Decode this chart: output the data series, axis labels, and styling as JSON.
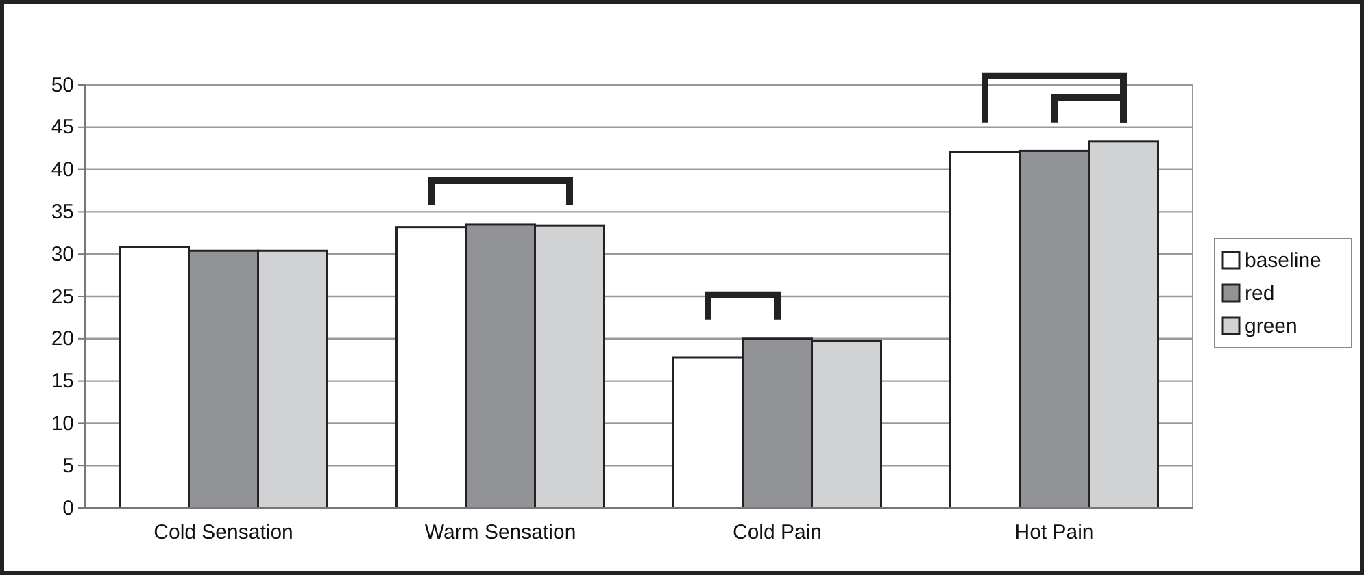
{
  "chart_data": {
    "type": "bar",
    "categories": [
      "Cold Sensation",
      "Warm Sensation",
      "Cold Pain",
      "Hot Pain"
    ],
    "series": [
      {
        "name": "baseline",
        "color": "#ffffff",
        "values": [
          30.8,
          33.2,
          17.8,
          42.1
        ]
      },
      {
        "name": "red",
        "color": "#929396",
        "values": [
          30.4,
          33.5,
          20.0,
          42.2
        ]
      },
      {
        "name": "green",
        "color": "#d1d2d4",
        "values": [
          30.4,
          33.4,
          19.7,
          43.3
        ]
      }
    ],
    "ylim": [
      0,
      50
    ],
    "yticks": [
      0,
      5,
      10,
      15,
      20,
      25,
      30,
      35,
      40,
      45,
      50
    ],
    "grid": "y",
    "legend": "right"
  }
}
